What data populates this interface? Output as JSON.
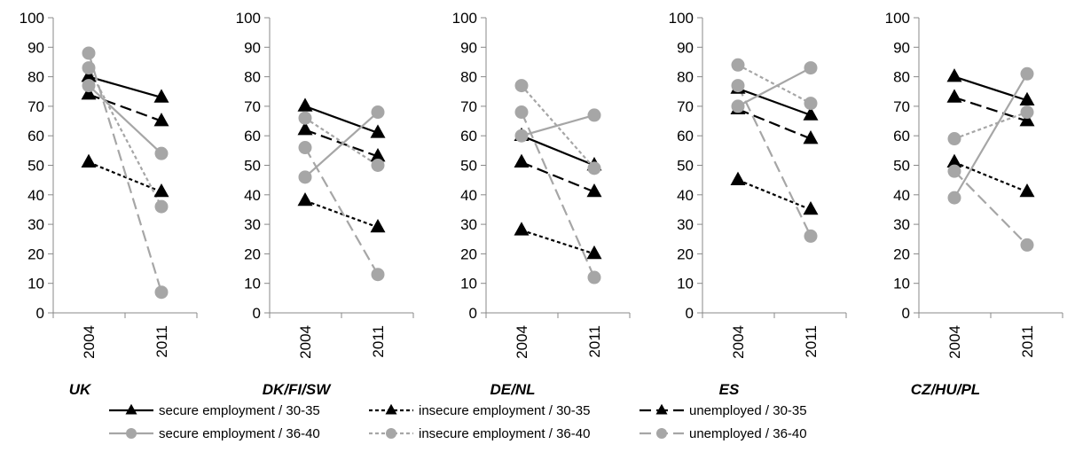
{
  "chart_data": {
    "type": "line",
    "categories": [
      "2004",
      "2011"
    ],
    "ylim": [
      0,
      100
    ],
    "yticks": [
      0,
      10,
      20,
      30,
      40,
      50,
      60,
      70,
      80,
      90,
      100
    ],
    "grid": false,
    "legend_position": "bottom",
    "series_styles": [
      {
        "name": "secure employment / 30-35",
        "color": "#000000",
        "dash": "solid",
        "marker": "triangle"
      },
      {
        "name": "insecure employment / 30-35",
        "color": "#000000",
        "dash": "dotted",
        "marker": "triangle"
      },
      {
        "name": "unemployed / 30-35",
        "color": "#000000",
        "dash": "dashed",
        "marker": "triangle"
      },
      {
        "name": "secure employment / 36-40",
        "color": "#a6a6a6",
        "dash": "solid",
        "marker": "circle"
      },
      {
        "name": "insecure employment / 36-40",
        "color": "#a6a6a6",
        "dash": "dotted",
        "marker": "circle"
      },
      {
        "name": "unemployed / 36-40",
        "color": "#a6a6a6",
        "dash": "dashed",
        "marker": "circle"
      }
    ],
    "panels": [
      {
        "title": "UK",
        "values": [
          [
            80,
            73
          ],
          [
            51,
            41
          ],
          [
            74,
            65
          ],
          [
            77,
            54
          ],
          [
            83,
            36
          ],
          [
            88,
            7
          ]
        ]
      },
      {
        "title": "DK/FI/SW",
        "values": [
          [
            70,
            61
          ],
          [
            38,
            29
          ],
          [
            62,
            53
          ],
          [
            46,
            68
          ],
          [
            66,
            50
          ],
          [
            56,
            13
          ]
        ]
      },
      {
        "title": "DE/NL",
        "values": [
          [
            60,
            50
          ],
          [
            28,
            20
          ],
          [
            51,
            41
          ],
          [
            60,
            67
          ],
          [
            77,
            49
          ],
          [
            68,
            12
          ]
        ]
      },
      {
        "title": "ES",
        "values": [
          [
            76,
            67
          ],
          [
            45,
            35
          ],
          [
            69,
            59
          ],
          [
            70,
            83
          ],
          [
            84,
            71
          ],
          [
            77,
            26
          ]
        ]
      },
      {
        "title": "CZ/HU/PL",
        "values": [
          [
            80,
            72
          ],
          [
            51,
            41
          ],
          [
            73,
            65
          ],
          [
            39,
            81
          ],
          [
            59,
            68
          ],
          [
            48,
            23
          ]
        ]
      }
    ]
  }
}
